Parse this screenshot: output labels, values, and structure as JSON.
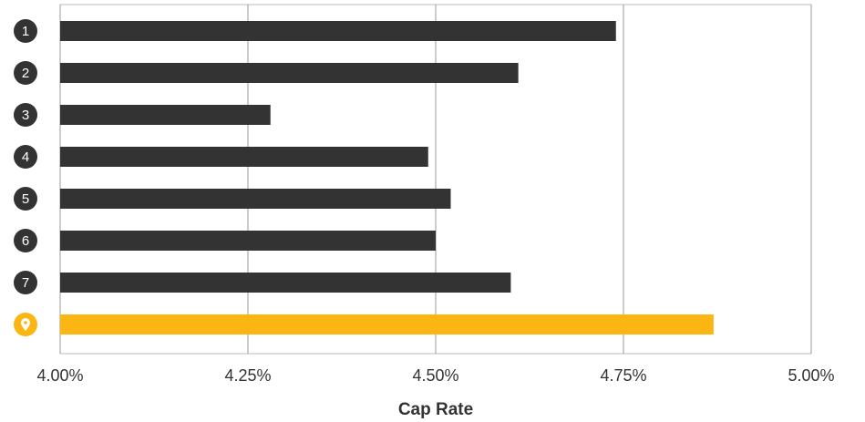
{
  "chart_data": {
    "type": "barh",
    "categories": [
      "1",
      "2",
      "3",
      "4",
      "5",
      "6",
      "7",
      null
    ],
    "values": [
      4.74,
      4.61,
      4.28,
      4.49,
      4.52,
      4.5,
      4.6,
      4.87
    ],
    "colors": [
      "#333333",
      "#333333",
      "#333333",
      "#333333",
      "#333333",
      "#333333",
      "#333333",
      "#fbb614"
    ],
    "xlim": [
      4.0,
      5.0
    ],
    "xticks": [
      {
        "value": 4.0,
        "label": "4.00%"
      },
      {
        "value": 4.25,
        "label": "4.25%"
      },
      {
        "value": 4.5,
        "label": "4.50%"
      },
      {
        "value": 4.75,
        "label": "4.75%"
      },
      {
        "value": 5.0,
        "label": "5.00%"
      }
    ],
    "xlabel": "Cap Rate",
    "grid": true
  }
}
